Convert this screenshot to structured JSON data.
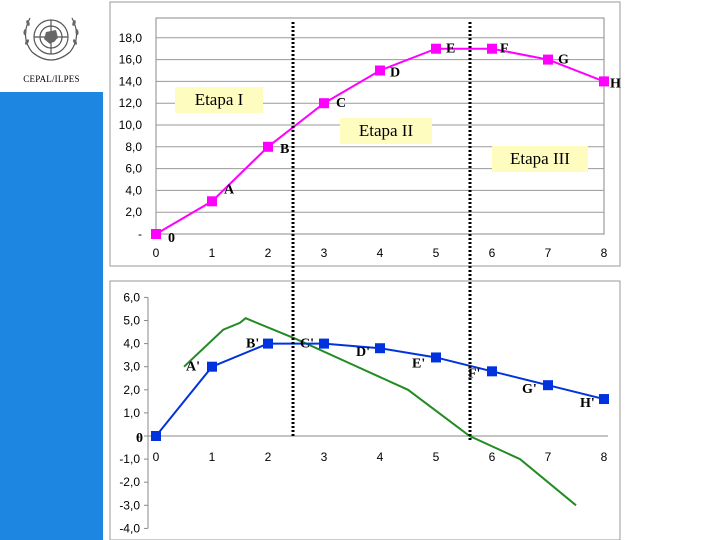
{
  "org": {
    "label": "CEPAL/ILPES"
  },
  "colors": {
    "sidebar": "#1c86e0",
    "top_series": "#ff00ff",
    "bottom_series": "#0033dd",
    "green_line": "#228b22",
    "label_box": "#fffcc0"
  },
  "stage_labels": [
    "Etapa I",
    "Etapa II",
    "Etapa III"
  ],
  "chart_data": [
    {
      "type": "line",
      "x": [
        0,
        1,
        2,
        3,
        4,
        5,
        6,
        7,
        8
      ],
      "xticks": [
        "0",
        "1",
        "2",
        "3",
        "4",
        "5",
        "6",
        "7",
        "8"
      ],
      "yticks": [
        "-",
        "2,0",
        "4,0",
        "6,0",
        "8,0",
        "10,0",
        "12,0",
        "14,0",
        "16,0",
        "18,0"
      ],
      "ylim": [
        0,
        18
      ],
      "series": [
        {
          "values": [
            0,
            3,
            8,
            12,
            15,
            17,
            17,
            16,
            14
          ],
          "point_labels": [
            "0",
            "A",
            "B",
            "C",
            "D",
            "E",
            "F",
            "G",
            "H"
          ]
        }
      ],
      "grid": true
    },
    {
      "type": "line",
      "x": [
        0,
        1,
        2,
        3,
        4,
        5,
        6,
        7,
        8
      ],
      "xticks": [
        "0",
        "1",
        "2",
        "3",
        "4",
        "5",
        "6",
        "7",
        "8"
      ],
      "yticks": [
        "-4,0",
        "-3,0",
        "-2,0",
        "-1,0",
        "-",
        "1,0",
        "2,0",
        "3,0",
        "4,0",
        "5,0",
        "6,0"
      ],
      "ylim": [
        -4,
        6
      ],
      "series": [
        {
          "values": [
            0,
            3,
            4,
            4,
            3.8,
            3.4,
            2.8,
            2.2,
            1.6
          ],
          "point_labels": [
            "0",
            "A'",
            "B'",
            "C'",
            "D'",
            "E'",
            "F'",
            "G'",
            "H'"
          ]
        },
        {
          "x": [
            0.5,
            1.2,
            1.5,
            1.6,
            2.5,
            3.5,
            4.5,
            5.6,
            6.5,
            7.5
          ],
          "values": [
            3,
            4.6,
            4.9,
            5.1,
            4.2,
            3.1,
            2,
            0,
            -1,
            -3
          ]
        }
      ],
      "grid": false
    }
  ]
}
